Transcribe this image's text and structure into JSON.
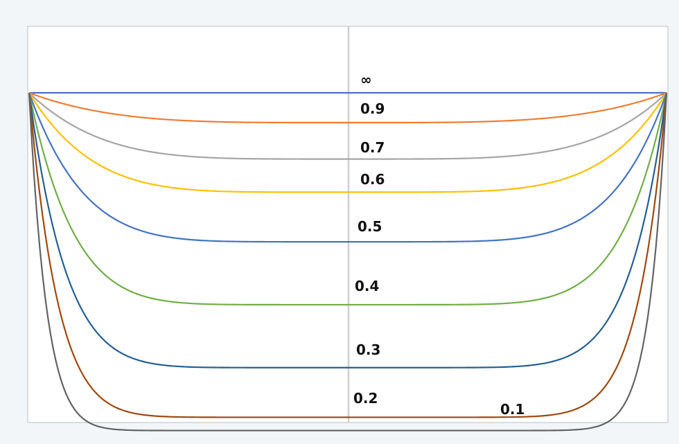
{
  "chart_data": {
    "type": "line",
    "title": "",
    "xlabel": "",
    "ylabel": "",
    "grid": false,
    "legend": "none",
    "series": [
      {
        "name": "∞",
        "color": "#4472c4",
        "depth": 0.0,
        "sharpness": 1.0
      },
      {
        "name": "0.9",
        "color": "#ed7d31",
        "depth": 0.09,
        "sharpness": 4.0
      },
      {
        "name": "0.7",
        "color": "#a5a5a5",
        "depth": 0.2,
        "sharpness": 4.6
      },
      {
        "name": "0.6",
        "color": "#ffc000",
        "depth": 0.3,
        "sharpness": 5.2
      },
      {
        "name": "0.5",
        "color": "#4472c4",
        "depth": 0.45,
        "sharpness": 6.0
      },
      {
        "name": "0.4",
        "color": "#70ad47",
        "depth": 0.64,
        "sharpness": 7.2
      },
      {
        "name": "0.3",
        "color": "#255e91",
        "depth": 0.83,
        "sharpness": 8.6
      },
      {
        "name": "0.2",
        "color": "#9e480e",
        "depth": 0.98,
        "sharpness": 11.0
      },
      {
        "name": "0.1",
        "color": "#636363",
        "depth": 1.02,
        "sharpness": 18.0
      }
    ]
  }
}
